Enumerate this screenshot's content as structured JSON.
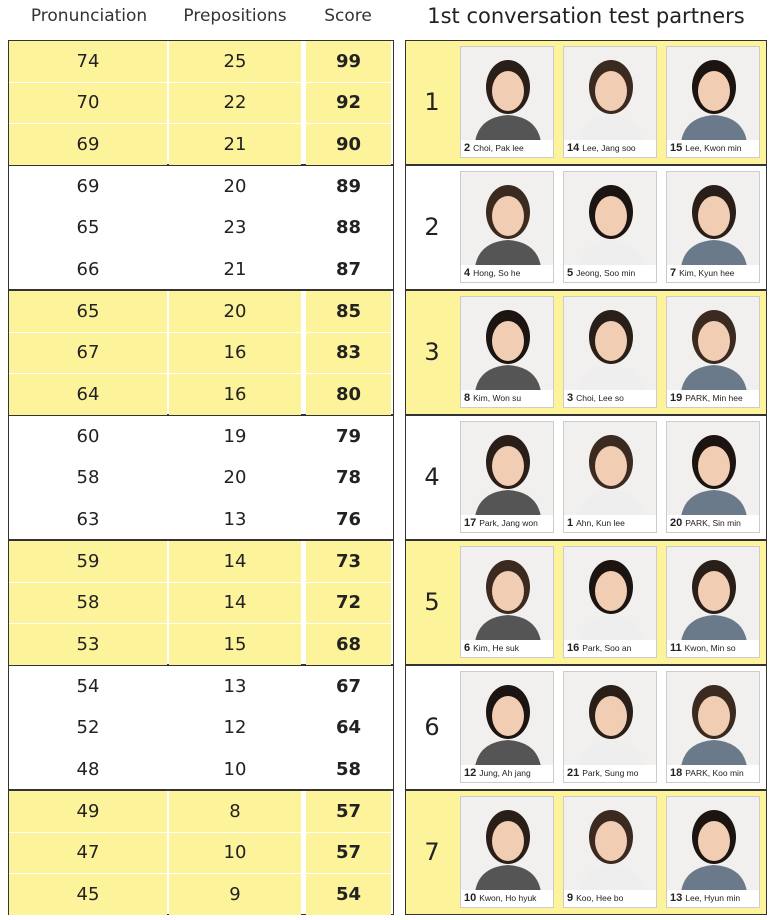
{
  "header": {
    "columns": [
      "Pronunciation",
      "Prepositions",
      "Score"
    ],
    "partners_title": "1st conversation test partners"
  },
  "groups": [
    {
      "rows": [
        [
          74,
          25,
          99
        ],
        [
          70,
          22,
          92
        ],
        [
          69,
          21,
          90
        ]
      ],
      "label": "1",
      "partners": [
        {
          "number": "2",
          "name": "Choi, Pak lee"
        },
        {
          "number": "14",
          "name": "Lee, Jang soo"
        },
        {
          "number": "15",
          "name": "Lee, Kwon min"
        }
      ]
    },
    {
      "rows": [
        [
          69,
          20,
          89
        ],
        [
          65,
          23,
          88
        ],
        [
          66,
          21,
          87
        ]
      ],
      "label": "2",
      "partners": [
        {
          "number": "4",
          "name": "Hong, So he"
        },
        {
          "number": "5",
          "name": "Jeong, Soo min"
        },
        {
          "number": "7",
          "name": "Kim, Kyun hee"
        }
      ]
    },
    {
      "rows": [
        [
          65,
          20,
          85
        ],
        [
          67,
          16,
          83
        ],
        [
          64,
          16,
          80
        ]
      ],
      "label": "3",
      "partners": [
        {
          "number": "8",
          "name": "Kim, Won su"
        },
        {
          "number": "3",
          "name": "Choi, Lee so"
        },
        {
          "number": "19",
          "name": "PARK, Min hee"
        }
      ]
    },
    {
      "rows": [
        [
          60,
          19,
          79
        ],
        [
          58,
          20,
          78
        ],
        [
          63,
          13,
          76
        ]
      ],
      "label": "4",
      "partners": [
        {
          "number": "17",
          "name": "Park, Jang won"
        },
        {
          "number": "1",
          "name": "Ahn, Kun lee"
        },
        {
          "number": "20",
          "name": "PARK, Sin min"
        }
      ]
    },
    {
      "rows": [
        [
          59,
          14,
          73
        ],
        [
          58,
          14,
          72
        ],
        [
          53,
          15,
          68
        ]
      ],
      "label": "5",
      "partners": [
        {
          "number": "6",
          "name": "Kim, He suk"
        },
        {
          "number": "16",
          "name": "Park, Soo an"
        },
        {
          "number": "11",
          "name": "Kwon, Min so"
        }
      ]
    },
    {
      "rows": [
        [
          54,
          13,
          67
        ],
        [
          52,
          12,
          64
        ],
        [
          48,
          10,
          58
        ]
      ],
      "label": "6",
      "partners": [
        {
          "number": "12",
          "name": "Jung, Ah jang"
        },
        {
          "number": "21",
          "name": "Park, Sung mo"
        },
        {
          "number": "18",
          "name": "PARK, Koo min"
        }
      ]
    },
    {
      "rows": [
        [
          49,
          8,
          57
        ],
        [
          47,
          10,
          57
        ],
        [
          45,
          9,
          54
        ]
      ],
      "label": "7",
      "partners": [
        {
          "number": "10",
          "name": "Kwon, Ho hyuk"
        },
        {
          "number": "9",
          "name": "Koo, Hee bo"
        },
        {
          "number": "13",
          "name": "Lee, Hyun min"
        }
      ]
    }
  ]
}
